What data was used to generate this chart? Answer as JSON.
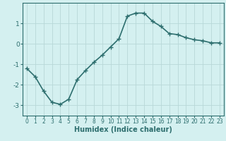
{
  "x": [
    0,
    1,
    2,
    3,
    4,
    5,
    6,
    7,
    8,
    9,
    10,
    11,
    12,
    13,
    14,
    15,
    16,
    17,
    18,
    19,
    20,
    21,
    22,
    23
  ],
  "y": [
    -1.2,
    -1.6,
    -2.3,
    -2.85,
    -2.95,
    -2.7,
    -1.75,
    -1.3,
    -0.9,
    -0.55,
    -0.15,
    0.25,
    1.35,
    1.5,
    1.5,
    1.1,
    0.85,
    0.5,
    0.45,
    0.3,
    0.2,
    0.15,
    0.05,
    0.05
  ],
  "line_color": "#2d6e6e",
  "marker": "+",
  "marker_size": 4,
  "background_color": "#d4f0f0",
  "grid_color": "#b8d8d8",
  "xlabel": "Humidex (Indice chaleur)",
  "xlabel_fontsize": 7,
  "ylim": [
    -3.5,
    2.0
  ],
  "xlim": [
    -0.5,
    23.5
  ],
  "yticks": [
    -3,
    -2,
    -1,
    0,
    1
  ],
  "xtick_fontsize": 5.5,
  "ytick_fontsize": 6.5,
  "tick_color": "#2d6e6e",
  "spine_color": "#2d6e6e",
  "linewidth": 1.2
}
